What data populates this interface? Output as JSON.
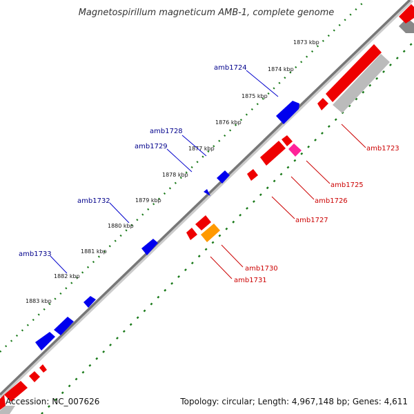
{
  "title": "Magnetospirillum magneticum AMB-1, complete genome",
  "footer": {
    "accession": "Accession: NC_007626",
    "topology": "Topology: circular; Length: 4,967,148 bp; Genes: 4,611"
  },
  "colors": {
    "backbone": "#777777",
    "gc_ticks": "#1a7a1a",
    "forward_gene": "#0000ee",
    "reverse_gene": "#ee0000",
    "reverse_gene_alt": "#ff2299",
    "reverse_gene_orange": "#ff9900",
    "grey_track": "#bbbbbb",
    "forward_label": "#00008b",
    "reverse_label": "#cc0000"
  },
  "ticks": [
    "1873 kbp",
    "1874 kbp",
    "1875 kbp",
    "1876 kbp",
    "1877 kbp",
    "1878 kbp",
    "1879 kbp",
    "1880 kbp",
    "1881 kbp",
    "1882 kbp",
    "1883 kbp"
  ],
  "forward_labels": [
    "amb1724",
    "amb1728",
    "amb1729",
    "amb1732",
    "amb1733"
  ],
  "reverse_labels": [
    "amb1723",
    "amb1725",
    "amb1726",
    "amb1727",
    "amb1730",
    "amb1731"
  ]
}
